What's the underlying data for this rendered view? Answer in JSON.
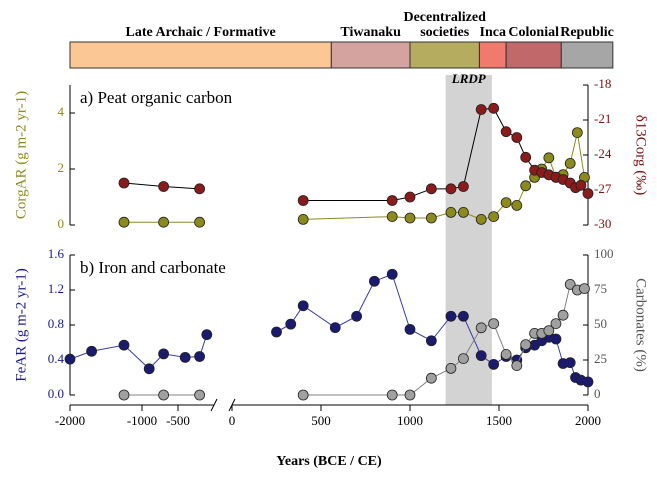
{
  "chart_data": [
    {
      "type": "periods",
      "end": 2140,
      "periods": [
        {
          "label": "Late Archaic / Formative",
          "start": -2000,
          "color": "#fbc895"
        },
        {
          "label": "Tiwanaku",
          "start": 558,
          "color": "#d4a3a0"
        },
        {
          "label": [
            "Decentralized",
            "societies"
          ],
          "start": 1000,
          "color": "#b5ac5f"
        },
        {
          "label": "Inca",
          "start": 1390,
          "color": "#f07a6e"
        },
        {
          "label": "Colonial",
          "start": 1540,
          "color": "#c0686a"
        },
        {
          "label": "Republic",
          "start": 1850,
          "color": "#a6a6a6"
        }
      ]
    },
    {
      "type": "line",
      "title": "a) Peat organic carbon",
      "annotation": "LRDP",
      "shade": [
        1200,
        1460
      ],
      "ylabel": "CorgAR (g m-2 yr-1)",
      "ylabel_color": "#8b8a1c",
      "ylim": [
        0,
        5
      ],
      "yticks": [
        0,
        2,
        4
      ],
      "y2label": "δ13Corg (‰)",
      "y2label_color": "#7a1010",
      "y2lim": [
        -30,
        -18
      ],
      "y2ticks": [
        -30,
        -27,
        -24,
        -21,
        -18
      ],
      "series": [
        {
          "color": "#8b8a1c",
          "line": "#8b8a1c",
          "x": [
            -1250,
            -700,
            -200,
            400,
            900,
            1000,
            1120,
            1230,
            1300,
            1400,
            1470,
            1540,
            1600,
            1650,
            1700,
            1740,
            1780,
            1820,
            1860,
            1900,
            1940,
            1980
          ],
          "values": [
            0.1,
            0.1,
            0.1,
            0.2,
            0.3,
            0.25,
            0.25,
            0.45,
            0.45,
            0.2,
            0.3,
            0.8,
            0.7,
            1.4,
            1.7,
            2.0,
            2.4,
            1.7,
            1.8,
            2.2,
            3.3,
            1.7
          ]
        },
        {
          "color": "#8b1a1a",
          "line": "#000000",
          "axis": "y2",
          "x": [
            -1250,
            -700,
            -200,
            400,
            900,
            1000,
            1120,
            1230,
            1300,
            1400,
            1470,
            1540,
            1600,
            1650,
            1700,
            1740,
            1780,
            1820,
            1860,
            1900,
            1930,
            1960,
            2000
          ],
          "values": [
            -26.4,
            -26.7,
            -26.9,
            -27.9,
            -27.9,
            -27.6,
            -26.9,
            -26.9,
            -26.7,
            -20.1,
            -20.0,
            -22.0,
            -22.5,
            -24.2,
            -25.3,
            -25.5,
            -25.7,
            -25.9,
            -26.1,
            -26.4,
            -26.8,
            -26.6,
            -27.3
          ]
        }
      ]
    },
    {
      "type": "line",
      "title": "b) Iron and carbonate",
      "ylabel": "FeAR (g m-2 yr-1)",
      "ylabel_color": "#1a1a8e",
      "ylim": [
        0,
        1.6
      ],
      "yticks": [
        {
          "value": 0,
          "label": "0.0"
        },
        0.4,
        0.8,
        1.2,
        1.6
      ],
      "y2label": "Carbonates (%)",
      "y2label_color": "#555555",
      "y2lim": [
        0,
        100
      ],
      "y2ticks": [
        0,
        25,
        50,
        75,
        100
      ],
      "series": [
        {
          "color": "#1a1a6e",
          "line": "#3a3aa8",
          "x": [
            -2000,
            -1700,
            -1250,
            -900,
            -700,
            -400,
            -200,
            -100,
            250,
            330,
            400,
            580,
            700,
            800,
            900,
            1000,
            1120,
            1230,
            1300,
            1400,
            1470,
            1540,
            1600,
            1650,
            1700,
            1740,
            1780,
            1820,
            1860,
            1900,
            1930,
            1960,
            2000
          ],
          "values": [
            0.41,
            0.5,
            0.57,
            0.3,
            0.47,
            0.43,
            0.44,
            0.69,
            0.72,
            0.81,
            1.02,
            0.77,
            0.9,
            1.3,
            1.38,
            0.75,
            0.62,
            0.9,
            0.9,
            0.45,
            0.35,
            0.44,
            0.4,
            0.54,
            0.57,
            0.62,
            0.66,
            0.64,
            0.36,
            0.37,
            0.2,
            0.17,
            0.15
          ]
        },
        {
          "color": "#a0a0a0",
          "line": "#808080",
          "axis": "y2",
          "x": [
            -1250,
            -700,
            -200,
            400,
            900,
            1000,
            1120,
            1230,
            1300,
            1400,
            1470,
            1540,
            1600,
            1650,
            1700,
            1740,
            1780,
            1820,
            1860,
            1900,
            1940,
            1980
          ],
          "values": [
            0,
            0,
            0,
            0,
            0,
            0,
            12,
            19,
            26,
            48,
            51,
            29,
            21,
            36,
            44,
            44,
            46,
            51,
            57,
            79,
            75,
            76
          ]
        }
      ]
    },
    {
      "type": "x-axis",
      "xlabel": "Years (BCE / CE)",
      "segments": [
        {
          "xlim": [
            -2000,
            0
          ],
          "xticks": [
            -2000,
            -1000,
            -500
          ]
        },
        {
          "xlim": [
            0,
            2000
          ],
          "xticks": [
            0,
            500,
            1000,
            1500,
            2000
          ]
        }
      ]
    }
  ]
}
